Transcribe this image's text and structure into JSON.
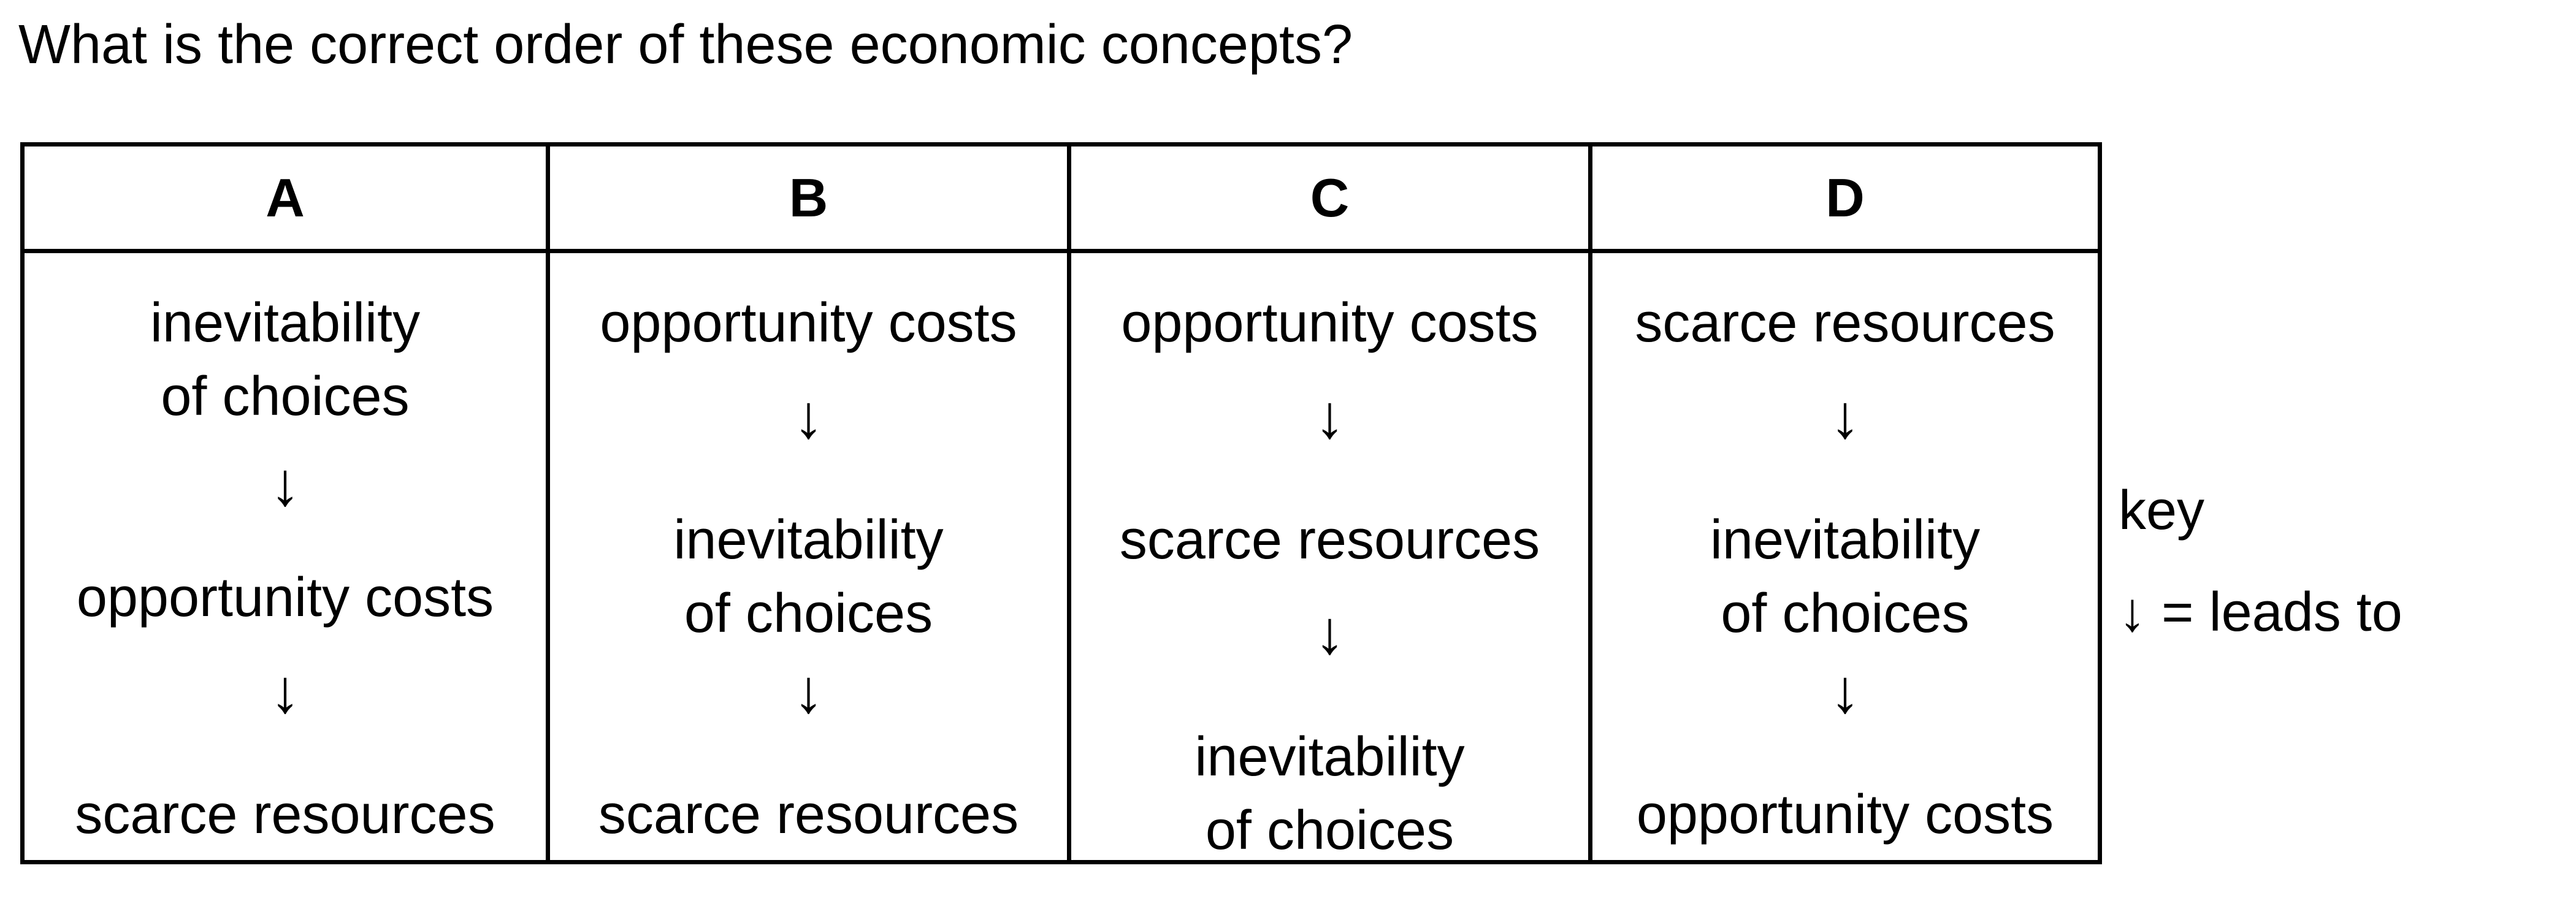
{
  "question": "What is the correct order of these economic concepts?",
  "arrow_glyph": "↓",
  "options": [
    {
      "label": "A",
      "steps": [
        {
          "line1": "inevitability",
          "line2": "of choices"
        },
        {
          "line1": "opportunity costs",
          "line2": ""
        },
        {
          "line1": "scarce resources",
          "line2": ""
        }
      ]
    },
    {
      "label": "B",
      "steps": [
        {
          "line1": "opportunity costs",
          "line2": ""
        },
        {
          "line1": "inevitability",
          "line2": "of choices"
        },
        {
          "line1": "scarce resources",
          "line2": ""
        }
      ]
    },
    {
      "label": "C",
      "steps": [
        {
          "line1": "opportunity costs",
          "line2": ""
        },
        {
          "line1": "scarce resources",
          "line2": ""
        },
        {
          "line1": "inevitability",
          "line2": "of choices"
        }
      ]
    },
    {
      "label": "D",
      "steps": [
        {
          "line1": "scarce resources",
          "line2": ""
        },
        {
          "line1": "inevitability",
          "line2": "of choices"
        },
        {
          "line1": "opportunity costs",
          "line2": ""
        }
      ]
    }
  ],
  "key": {
    "title": "key",
    "symbol": "↓",
    "meaning": "= leads to"
  }
}
